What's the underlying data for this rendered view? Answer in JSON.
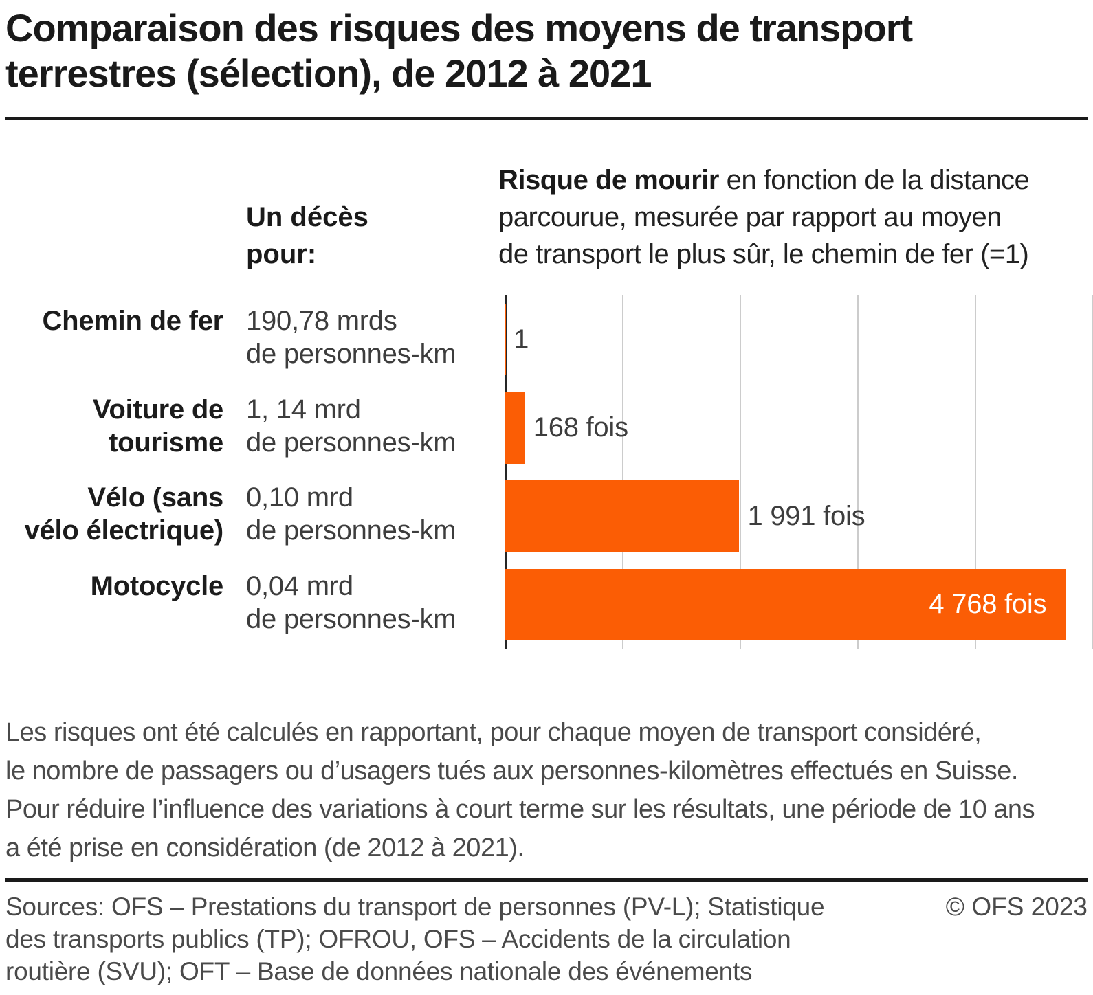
{
  "title": {
    "full": "Comparaison des risques des moyens de transport terrestres (sélection), de 2012 à 2021",
    "line1": "Comparaison des risques des moyens de transport",
    "line2": "terrestres (sélection), de 2012 à 2021"
  },
  "header": {
    "left_line1": "Un décès",
    "left_line2": "pour:",
    "right_bold": "Risque de mourir",
    "right_line1_rest": " en fonction de la distance",
    "right_line2": "parcourue, mesurée par rapport au moyen",
    "right_line3": "de transport le plus sûr, le chemin de fer (=1)"
  },
  "chart_data": {
    "type": "bar",
    "orientation": "horizontal",
    "categories": [
      "Chemin de fer",
      "Voiture de tourisme",
      "Vélo (sans vélo électrique)",
      "Motocycle"
    ],
    "values": [
      1,
      168,
      1991,
      4768
    ],
    "value_labels": [
      "1",
      "168 fois",
      "1 991 fois",
      "4 768 fois"
    ],
    "category_exposures": [
      "190,78 mrds de personnes-km",
      "1, 14 mrd de personnes-km",
      "0,10 mrd de personnes-km",
      "0,04 mrd de personnes-km"
    ],
    "xlim": [
      0,
      5000
    ],
    "gridlines": [
      1000,
      2000,
      3000,
      4000,
      5000
    ],
    "grid": "vertical-light-gray",
    "bar_color": "#fb5d05",
    "legend_position": "none"
  },
  "rows": [
    {
      "label1": "Chemin de fer",
      "label2": "",
      "amount": "190,78 mrds",
      "unit": "de personnes-km",
      "bar_label": "1",
      "bar_pct": 0.02
    },
    {
      "label1": "Voiture de",
      "label2": "tourisme",
      "amount": "1, 14 mrd",
      "unit": "de personnes-km",
      "bar_label": "168 fois",
      "bar_pct": 3.36
    },
    {
      "label1": "Vélo (sans",
      "label2": "vélo électrique)",
      "amount": "0,10 mrd",
      "unit": "de personnes-km",
      "bar_label": "1 991 fois",
      "bar_pct": 39.82
    },
    {
      "label1": "Motocycle",
      "label2": "",
      "amount": "0,04 mrd",
      "unit": "de personnes-km",
      "bar_label": "4 768 fois",
      "bar_pct": 95.36
    }
  ],
  "footnote_lines": [
    "Les risques ont été calculés en rapportant, pour chaque moyen de transport considéré,",
    "le nombre de passagers ou d’usagers tués aux personnes-kilomètres effectués en Suisse.",
    "Pour réduire l’influence des variations à court terme sur les résultats, une période de 10 ans",
    "a été prise en considération (de 2012 à 2021)."
  ],
  "sources_lines": [
    "Sources: OFS – Prestations du transport de personnes (PV-L); Statistique",
    "des transports publics (TP); OFROU, OFS – Accidents de la circulation",
    "routière (SVU); OFT – Base de données nationale des événements"
  ],
  "copyright": "© OFS 2023",
  "colors": {
    "bar_orange": "#fb5d05",
    "gridline_gray": "#cccccc",
    "axis_dark": "#262626",
    "title_dark": "#1a1a1a",
    "body_gray": "#4a4a4a"
  }
}
